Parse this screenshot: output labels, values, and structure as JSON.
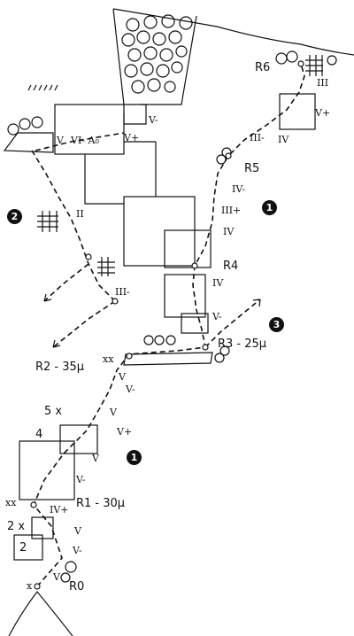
{
  "stations": {
    "r0": "R0",
    "r1": "R1 - 30μ",
    "r2": "R2 - 35μ",
    "r3": "R3 - 25μ",
    "r4": "R4",
    "r5": "R5",
    "r6": "R6"
  },
  "route_markers": {
    "one": "1",
    "two": "2",
    "three": "3"
  },
  "marks": {
    "xx": "xx",
    "x": "x",
    "five_x": "5 x",
    "two_x": "2 x",
    "four_p": "4",
    "two_p": "2"
  },
  "grades": {
    "g_r0": "V",
    "g_bottom_vminus": "V-",
    "g_bottom_v": "V",
    "g_ivplus_low": "IV+",
    "g_vminus_low2": "V-",
    "g_v_mid": "V",
    "g_vplus_mid": "V+",
    "g_v_upper_low": "V",
    "g_vminus_r2": "V-",
    "g_v_r2": "V",
    "g_iii_minus_left": "III-",
    "g_ii_left": "II",
    "g_v_r3a": "V-",
    "g_iv_r4a": "IV",
    "g_iv_r4b": "IV",
    "g_v_r5": "V",
    "g_iii_plus": "III+",
    "g_iv_minus_r5": "IV-",
    "g_iii_minus_r6": "III-",
    "g_iv_r6": "IV",
    "g_vplus_r6": "V+",
    "g_iii_top": "III",
    "g_vminus_top": "V-",
    "g_v_top": "V",
    "g_vi_a0": "VI- A₀",
    "g_vplus_top": "V+"
  }
}
